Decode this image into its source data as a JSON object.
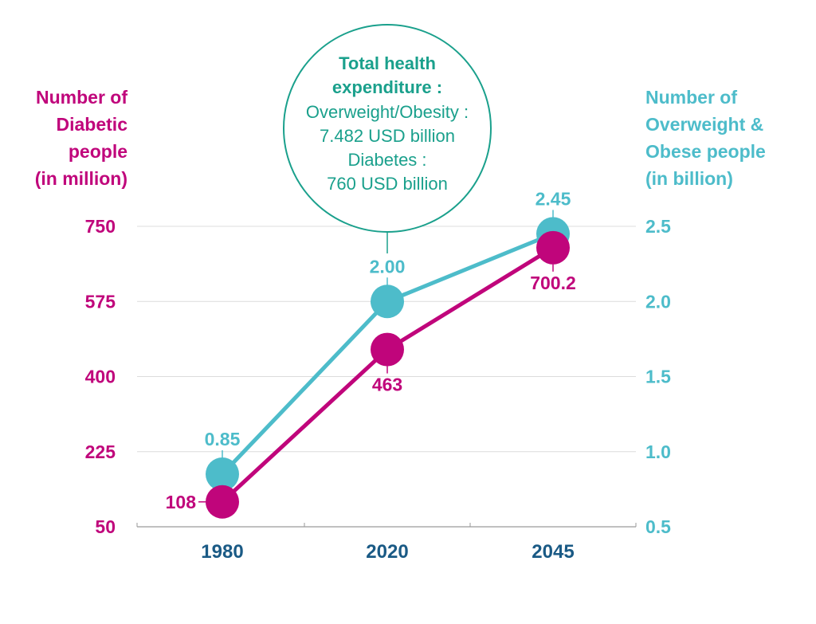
{
  "chart_data": {
    "type": "line",
    "categories": [
      "1980",
      "2020",
      "2045"
    ],
    "left_axis": {
      "label_lines": [
        "Number of",
        "Diabetic",
        "people",
        "(in million)"
      ],
      "ticks": [
        "750",
        "575",
        "400",
        "225",
        "50"
      ],
      "tick_values": [
        750,
        575,
        400,
        225,
        50
      ],
      "ylim": [
        50,
        750
      ]
    },
    "right_axis": {
      "label_lines": [
        "Number of",
        "Overweight &",
        "Obese people",
        "(in billion)"
      ],
      "ticks": [
        "2.5",
        "2.0",
        "1.5",
        "1.0",
        "0.5"
      ],
      "tick_values": [
        2.5,
        2.0,
        1.5,
        1.0,
        0.5
      ],
      "ylim": [
        0.5,
        2.5
      ]
    },
    "series": [
      {
        "axis": "left",
        "values": [
          108,
          463,
          700.2
        ],
        "labels": [
          "108",
          "463",
          "700.2"
        ],
        "color": "#c0057b"
      },
      {
        "axis": "right",
        "values": [
          0.85,
          2.0,
          2.45
        ],
        "labels": [
          "0.85",
          "2.00",
          "2.45"
        ],
        "color": "#4dbcca"
      }
    ],
    "annotation": {
      "title_lines": [
        "Total health",
        "expenditure :"
      ],
      "body_lines": [
        "Overweight/Obesity :",
        "7.482 USD billion",
        "Diabetes :",
        "760 USD billion"
      ],
      "color": "#1aa08c",
      "anchor_category": "2020"
    },
    "grid": true
  }
}
